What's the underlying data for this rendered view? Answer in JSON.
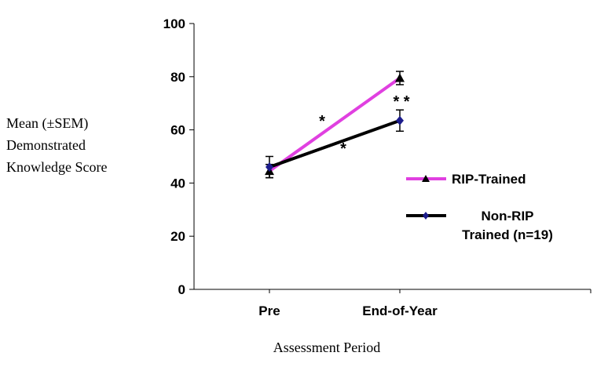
{
  "chart_data": {
    "type": "line",
    "categories": [
      "Pre",
      "End-of-Year"
    ],
    "ylim": [
      0,
      100
    ],
    "yticks": [
      0,
      20,
      40,
      60,
      80,
      100
    ],
    "ylabel_lines": [
      "Mean (±SEM)",
      "Demonstrated",
      "Knowledge Score"
    ],
    "xlabel": "Assessment Period",
    "legend_position": "right",
    "series": [
      {
        "name": "RIP-Trained",
        "values": [
          44.5,
          79.5
        ],
        "errors": [
          2.5,
          2.5
        ],
        "color": "#e040e0",
        "marker": "triangle",
        "legend_lines": [
          "RIP-Trained"
        ]
      },
      {
        "name": "Non-RIP Trained (n=19)",
        "values": [
          46,
          63.5
        ],
        "errors": [
          4,
          4
        ],
        "color": "#000000",
        "marker": "diamond",
        "marker_color": "#1c1c8c",
        "legend_lines": [
          "Non-RIP",
          "Trained (n=19)"
        ]
      }
    ],
    "annotations": [
      "*",
      "*",
      "* *"
    ]
  }
}
